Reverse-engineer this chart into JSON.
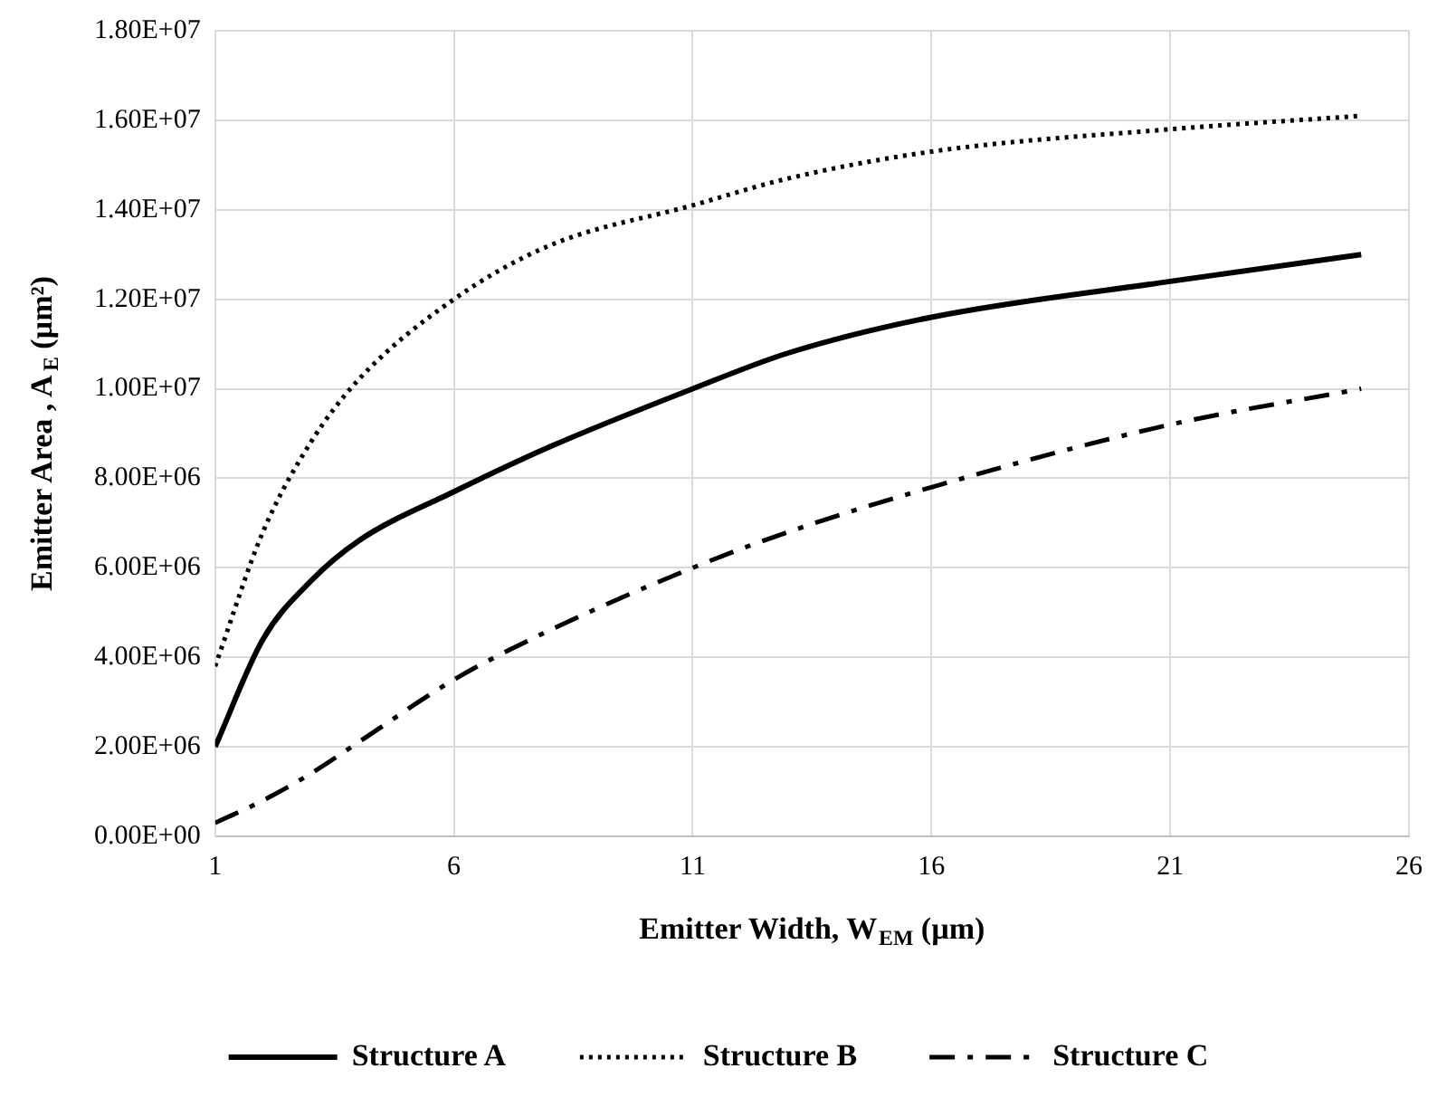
{
  "chart_data": {
    "type": "line",
    "xlabel": "Emitter Width, W$_{EM}$ (µm)",
    "ylabel": "Emitter Area , A$_{E}$ (µm²)",
    "x": [
      1,
      2,
      3,
      4,
      6,
      8,
      11,
      13,
      16,
      21,
      25
    ],
    "series": [
      {
        "name": "Structure A",
        "color": "#000000",
        "line_style": "solid",
        "values": [
          2000000.0,
          4400000.0,
          5700000.0,
          6600000.0,
          7700000.0,
          8700000.0,
          10000000.0,
          10800000.0,
          11600000.0,
          12400000.0,
          13000000.0
        ]
      },
      {
        "name": "Structure B",
        "color": "#000000",
        "line_style": "dotted",
        "values": [
          3800000.0,
          6800000.0,
          8800000.0,
          10200000.0,
          12000000.0,
          13200000.0,
          14100000.0,
          14700000.0,
          15300000.0,
          15800000.0,
          16100000.0
        ]
      },
      {
        "name": "Structure C",
        "color": "#000000",
        "line_style": "dashed",
        "values": [
          300000.0,
          800000.0,
          1400000.0,
          2100000.0,
          3500000.0,
          4600000.0,
          6000000.0,
          6800000.0,
          7800000.0,
          9200000.0,
          10000000.0
        ]
      }
    ],
    "xlim": [
      1,
      26
    ],
    "xticks": [
      1,
      6,
      11,
      16,
      21,
      26
    ],
    "ylim": [
      0,
      18000000.0
    ],
    "yticks": [
      {
        "value": 0,
        "label": "0.00E+00"
      },
      {
        "value": 2000000.0,
        "label": "2.00E+06"
      },
      {
        "value": 4000000.0,
        "label": "4.00E+06"
      },
      {
        "value": 6000000.0,
        "label": "6.00E+06"
      },
      {
        "value": 8000000.0,
        "label": "8.00E+06"
      },
      {
        "value": 10000000.0,
        "label": "1.00E+07"
      },
      {
        "value": 12000000.0,
        "label": "1.20E+07"
      },
      {
        "value": 14000000.0,
        "label": "1.40E+07"
      },
      {
        "value": 16000000.0,
        "label": "1.60E+07"
      },
      {
        "value": 18000000.0,
        "label": "1.80E+07"
      }
    ],
    "grid": true,
    "legend": "bottom",
    "marker": "none"
  }
}
